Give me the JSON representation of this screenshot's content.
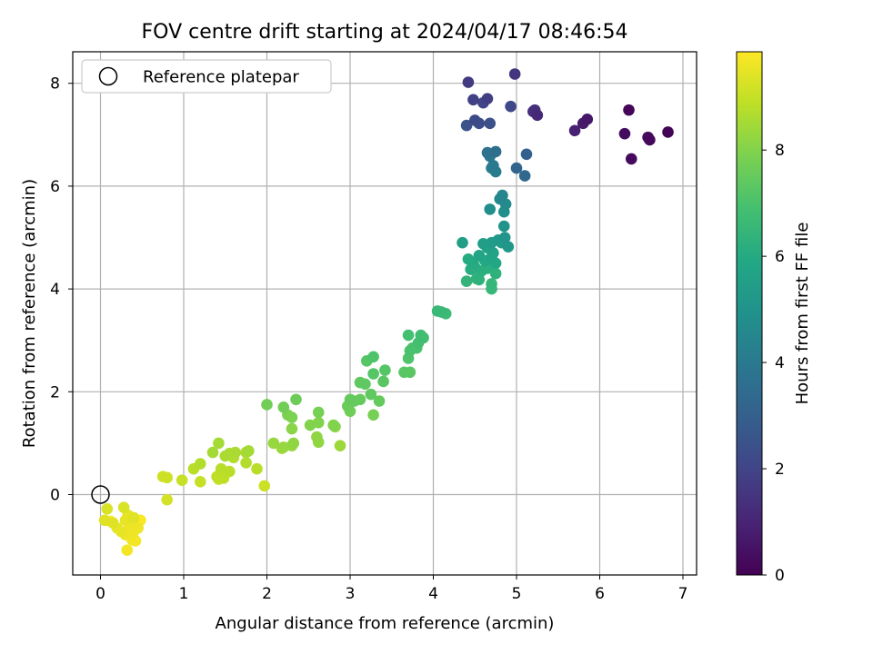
{
  "chart_data": {
    "type": "scatter",
    "title": "FOV centre drift starting at 2024/04/17 08:46:54",
    "xlabel": "Angular distance from reference (arcmin)",
    "ylabel": "Rotation from reference (arcmin)",
    "xlim": [
      -0.33,
      7.17
    ],
    "ylim": [
      -1.6,
      8.6
    ],
    "xticks": [
      "0",
      "1",
      "2",
      "3",
      "4",
      "5",
      "6",
      "7"
    ],
    "yticks": [
      "0",
      "2",
      "4",
      "6",
      "8"
    ],
    "grid": true,
    "legend": {
      "placement": "top-left",
      "label": "Reference platepar"
    },
    "reference_point": [
      0,
      0
    ],
    "colorbar": {
      "label": "Hours from first FF file",
      "range": [
        0,
        9.85
      ],
      "ticks": [
        "0",
        "2",
        "4",
        "6",
        "8"
      ],
      "colormap": "viridis"
    },
    "points": [
      [
        6.82,
        7.05,
        0.1
      ],
      [
        6.6,
        6.9,
        0.2
      ],
      [
        6.58,
        6.95,
        0.3
      ],
      [
        6.35,
        7.48,
        0.15
      ],
      [
        6.38,
        6.53,
        0.25
      ],
      [
        6.3,
        7.02,
        0.35
      ],
      [
        5.85,
        7.3,
        0.6
      ],
      [
        5.8,
        7.22,
        0.7
      ],
      [
        5.7,
        7.08,
        0.9
      ],
      [
        5.25,
        7.38,
        1.1
      ],
      [
        5.2,
        7.45,
        1.3
      ],
      [
        5.22,
        7.48,
        1.4
      ],
      [
        4.98,
        8.18,
        1.5
      ],
      [
        4.42,
        8.02,
        1.7
      ],
      [
        4.65,
        7.7,
        1.8
      ],
      [
        4.48,
        7.68,
        1.9
      ],
      [
        4.6,
        7.62,
        2.0
      ],
      [
        4.93,
        7.55,
        2.1
      ],
      [
        4.5,
        7.28,
        2.2
      ],
      [
        4.55,
        7.22,
        2.3
      ],
      [
        4.68,
        7.22,
        2.4
      ],
      [
        4.4,
        7.18,
        2.5
      ],
      [
        5.12,
        6.62,
        3.0
      ],
      [
        5.0,
        6.35,
        3.2
      ],
      [
        5.1,
        6.2,
        3.3
      ],
      [
        4.75,
        6.67,
        3.6
      ],
      [
        4.65,
        6.65,
        3.7
      ],
      [
        4.68,
        6.58,
        3.9
      ],
      [
        4.72,
        6.4,
        4.0
      ],
      [
        4.75,
        6.28,
        4.1
      ],
      [
        4.7,
        6.35,
        4.2
      ],
      [
        4.83,
        5.82,
        4.5
      ],
      [
        4.8,
        5.75,
        4.6
      ],
      [
        4.87,
        5.65,
        4.7
      ],
      [
        4.68,
        5.55,
        4.8
      ],
      [
        4.85,
        5.5,
        4.9
      ],
      [
        4.85,
        5.22,
        5.0
      ],
      [
        4.86,
        5.0,
        5.1
      ],
      [
        4.9,
        4.82,
        5.2
      ],
      [
        4.78,
        4.95,
        5.3
      ],
      [
        4.82,
        4.9,
        5.3
      ],
      [
        4.7,
        4.9,
        5.4
      ],
      [
        4.6,
        4.88,
        5.5
      ],
      [
        4.35,
        4.9,
        5.5
      ],
      [
        4.65,
        4.8,
        5.6
      ],
      [
        4.72,
        4.7,
        5.7
      ],
      [
        4.55,
        4.65,
        5.8
      ],
      [
        4.7,
        4.62,
        5.8
      ],
      [
        4.62,
        4.55,
        5.9
      ],
      [
        4.75,
        4.5,
        5.9
      ],
      [
        4.42,
        4.58,
        6.0
      ],
      [
        4.48,
        4.5,
        6.0
      ],
      [
        4.5,
        4.42,
        6.1
      ],
      [
        4.45,
        4.38,
        6.1
      ],
      [
        4.58,
        4.35,
        6.2
      ],
      [
        4.65,
        4.4,
        6.2
      ],
      [
        4.75,
        4.3,
        6.3
      ],
      [
        4.55,
        4.18,
        6.3
      ],
      [
        4.52,
        4.2,
        6.4
      ],
      [
        4.4,
        4.15,
        6.4
      ],
      [
        4.7,
        4.1,
        6.5
      ],
      [
        4.7,
        4.0,
        6.5
      ],
      [
        4.05,
        3.57,
        6.6
      ],
      [
        4.1,
        3.55,
        6.6
      ],
      [
        4.15,
        3.52,
        6.7
      ],
      [
        3.85,
        3.1,
        6.8
      ],
      [
        3.88,
        3.05,
        6.8
      ],
      [
        3.7,
        3.1,
        6.9
      ],
      [
        3.82,
        2.95,
        6.9
      ],
      [
        3.75,
        2.85,
        7.0
      ],
      [
        3.8,
        2.85,
        7.0
      ],
      [
        3.72,
        2.8,
        7.0
      ],
      [
        3.7,
        2.65,
        7.1
      ],
      [
        3.28,
        2.68,
        7.1
      ],
      [
        3.2,
        2.6,
        7.2
      ],
      [
        3.42,
        2.42,
        7.2
      ],
      [
        3.28,
        2.35,
        7.2
      ],
      [
        3.65,
        2.38,
        7.3
      ],
      [
        3.72,
        2.38,
        7.3
      ],
      [
        3.4,
        2.2,
        7.3
      ],
      [
        3.12,
        2.18,
        7.4
      ],
      [
        3.18,
        2.15,
        7.4
      ],
      [
        3.25,
        1.95,
        7.4
      ],
      [
        3.0,
        1.85,
        7.5
      ],
      [
        3.05,
        1.82,
        7.5
      ],
      [
        3.12,
        1.85,
        7.5
      ],
      [
        3.35,
        1.82,
        7.5
      ],
      [
        2.97,
        1.72,
        7.6
      ],
      [
        2.35,
        1.85,
        7.6
      ],
      [
        2.2,
        1.7,
        7.7
      ],
      [
        2.0,
        1.75,
        7.7
      ],
      [
        3.0,
        1.62,
        7.7
      ],
      [
        3.28,
        1.55,
        7.8
      ],
      [
        2.62,
        1.6,
        7.8
      ],
      [
        2.3,
        1.5,
        7.9
      ],
      [
        2.25,
        1.55,
        7.9
      ],
      [
        2.62,
        1.4,
        8.0
      ],
      [
        2.52,
        1.35,
        8.0
      ],
      [
        2.8,
        1.35,
        8.0
      ],
      [
        2.82,
        1.32,
        8.1
      ],
      [
        2.3,
        1.28,
        8.1
      ],
      [
        2.6,
        1.12,
        8.2
      ],
      [
        2.62,
        1.02,
        8.2
      ],
      [
        2.32,
        1.0,
        8.2
      ],
      [
        2.3,
        0.95,
        8.3
      ],
      [
        2.08,
        1.0,
        8.3
      ],
      [
        2.2,
        0.92,
        8.3
      ],
      [
        2.18,
        0.9,
        8.4
      ],
      [
        2.88,
        0.95,
        8.4
      ],
      [
        1.42,
        1.0,
        8.5
      ],
      [
        1.35,
        0.82,
        8.5
      ],
      [
        1.78,
        0.85,
        8.5
      ],
      [
        1.75,
        0.82,
        8.6
      ],
      [
        1.62,
        0.82,
        8.6
      ],
      [
        1.55,
        0.8,
        8.6
      ],
      [
        1.5,
        0.75,
        8.6
      ],
      [
        1.6,
        0.72,
        8.7
      ],
      [
        1.75,
        0.62,
        8.7
      ],
      [
        1.2,
        0.6,
        8.7
      ],
      [
        1.12,
        0.5,
        8.8
      ],
      [
        1.45,
        0.5,
        8.8
      ],
      [
        1.88,
        0.5,
        8.8
      ],
      [
        1.55,
        0.45,
        8.8
      ],
      [
        1.45,
        0.42,
        8.9
      ],
      [
        1.4,
        0.35,
        8.9
      ],
      [
        1.48,
        0.32,
        8.9
      ],
      [
        1.42,
        0.3,
        9.0
      ],
      [
        1.2,
        0.25,
        9.0
      ],
      [
        0.98,
        0.28,
        9.0
      ],
      [
        0.75,
        0.35,
        9.1
      ],
      [
        0.8,
        0.33,
        9.1
      ],
      [
        1.97,
        0.17,
        9.1
      ],
      [
        0.8,
        -0.1,
        9.2
      ],
      [
        0.28,
        -0.25,
        9.3
      ],
      [
        0.08,
        -0.28,
        9.3
      ],
      [
        0.05,
        -0.5,
        9.4
      ],
      [
        0.15,
        -0.55,
        9.4
      ],
      [
        0.4,
        -0.45,
        9.4
      ],
      [
        0.3,
        -0.5,
        9.5
      ],
      [
        0.33,
        -0.4,
        9.5
      ],
      [
        0.2,
        -0.65,
        9.5
      ],
      [
        0.25,
        -0.72,
        9.5
      ],
      [
        0.35,
        -0.6,
        9.6
      ],
      [
        0.45,
        -0.65,
        9.6
      ],
      [
        0.4,
        -0.72,
        9.6
      ],
      [
        0.3,
        -0.78,
        9.6
      ],
      [
        0.38,
        -0.88,
        9.7
      ],
      [
        0.42,
        -0.9,
        9.7
      ],
      [
        0.32,
        -1.08,
        9.7
      ],
      [
        0.48,
        -0.5,
        9.8
      ],
      [
        0.12,
        -0.52,
        9.8
      ]
    ]
  }
}
